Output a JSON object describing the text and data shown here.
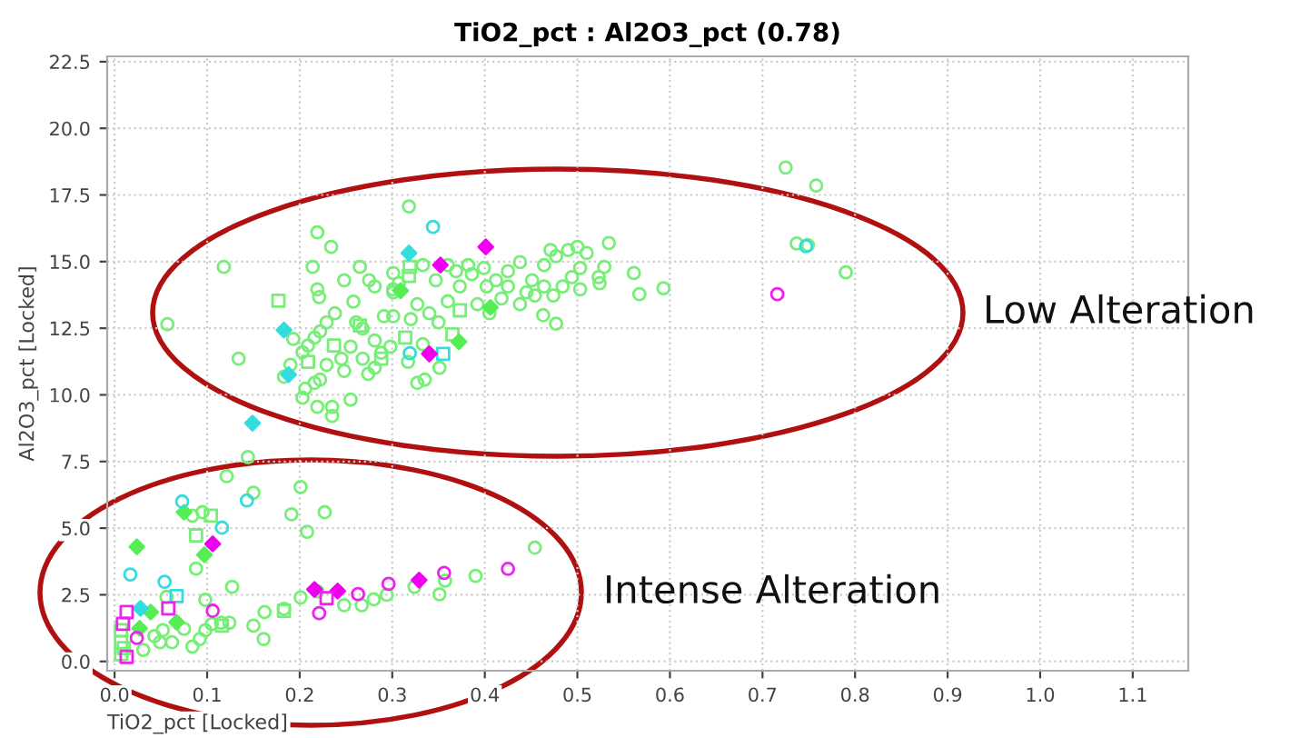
{
  "chart_data": {
    "type": "scatter",
    "title": "TiO2_pct : Al2O3_pct (0.78)",
    "xlabel": "TiO2_pct [Locked]",
    "ylabel": "Al2O3_pct [Locked]",
    "xlim": [
      -0.008,
      1.16
    ],
    "ylim": [
      -0.35,
      22.7
    ],
    "xticks": [
      {
        "value": 0,
        "label": "0.0"
      },
      0.1,
      0.2,
      0.3,
      0.4,
      0.5,
      0.6,
      0.7,
      0.8,
      0.9,
      {
        "value": 1,
        "label": "1.0"
      },
      1.1
    ],
    "yticks": [
      {
        "value": 0,
        "label": "0.0"
      },
      2.5,
      {
        "value": 5,
        "label": "5.0"
      },
      7.5,
      {
        "value": 10,
        "label": "10.0"
      },
      12.5,
      {
        "value": 15,
        "label": "15.0"
      },
      17.5,
      {
        "value": 20,
        "label": "20.0"
      },
      22.5
    ],
    "grid": true,
    "legend": false,
    "annotations": [
      "Low Alteration",
      "Intense Alteration"
    ],
    "series": [
      {
        "color": "#77ee77",
        "marker": "circle",
        "x": [
          0.118,
          0.057,
          0.134,
          0.219,
          0.234,
          0.318,
          0.214,
          0.219,
          0.221,
          0.193,
          0.203,
          0.209,
          0.216,
          0.222,
          0.229,
          0.238,
          0.248,
          0.258,
          0.265,
          0.275,
          0.281,
          0.261,
          0.268,
          0.255,
          0.245,
          0.229,
          0.222,
          0.206,
          0.203,
          0.219,
          0.235,
          0.235,
          0.255,
          0.248,
          0.268,
          0.281,
          0.291,
          0.301,
          0.307,
          0.333,
          0.347,
          0.327,
          0.301,
          0.288,
          0.281,
          0.274,
          0.298,
          0.317,
          0.327,
          0.335,
          0.333,
          0.351,
          0.35,
          0.34,
          0.32,
          0.36,
          0.373,
          0.386,
          0.399,
          0.412,
          0.418,
          0.405,
          0.392,
          0.425,
          0.438,
          0.451,
          0.445,
          0.463,
          0.477,
          0.464,
          0.477,
          0.49,
          0.5,
          0.51,
          0.503,
          0.494,
          0.484,
          0.474,
          0.464,
          0.454,
          0.438,
          0.425,
          0.503,
          0.523,
          0.524,
          0.529,
          0.534,
          0.561,
          0.567,
          0.593,
          0.471,
          0.369,
          0.382,
          0.402,
          0.36,
          0.301,
          0.301,
          0.216,
          0.19,
          0.183,
          0.749,
          0.725,
          0.758,
          0.737,
          0.79,
          0.144,
          0.121,
          0.15,
          0.201,
          0.191,
          0.208,
          0.227,
          0.095,
          0.084,
          0.088,
          0.098,
          0.127,
          0.075,
          0.052,
          0.043,
          0.031,
          0.049,
          0.062,
          0.084,
          0.092,
          0.098,
          0.105,
          0.115,
          0.124,
          0.15,
          0.161,
          0.162,
          0.183,
          0.201,
          0.219,
          0.248,
          0.267,
          0.28,
          0.294,
          0.324,
          0.351,
          0.357,
          0.39,
          0.454,
          0.056
        ],
        "values": [
          14.8,
          12.65,
          11.36,
          16.1,
          15.55,
          17.07,
          14.8,
          13.96,
          13.67,
          12.1,
          11.6,
          11.85,
          12.15,
          12.38,
          12.72,
          13.06,
          14.3,
          13.5,
          14.8,
          14.3,
          14.07,
          12.72,
          12.49,
          11.81,
          11.36,
          11.13,
          10.57,
          10.23,
          9.89,
          9.55,
          9.55,
          9.21,
          9.82,
          10.9,
          11.36,
          12.04,
          12.95,
          13.85,
          14.19,
          14.87,
          14.3,
          13.4,
          12.95,
          11.58,
          11.02,
          10.79,
          11.81,
          11.24,
          10.45,
          10.57,
          11.9,
          11.02,
          12.72,
          13.06,
          12.84,
          13.51,
          14.07,
          14.53,
          14.76,
          14.3,
          13.62,
          13.06,
          13.4,
          14.64,
          14.98,
          14.3,
          13.85,
          12.99,
          12.67,
          14.87,
          15.2,
          15.43,
          15.55,
          15.32,
          14.76,
          14.42,
          14.07,
          13.73,
          14.07,
          13.73,
          13.4,
          14.07,
          13.96,
          14.42,
          14.19,
          14.8,
          15.7,
          14.57,
          13.78,
          14.0,
          15.43,
          14.64,
          14.87,
          14.07,
          14.87,
          14.57,
          13.96,
          10.45,
          11.13,
          10.68,
          15.62,
          18.53,
          17.85,
          15.68,
          14.6,
          7.67,
          6.95,
          6.33,
          6.54,
          5.52,
          4.86,
          5.6,
          5.6,
          5.47,
          3.48,
          2.31,
          2.8,
          1.22,
          1.17,
          0.95,
          0.43,
          0.72,
          0.72,
          0.56,
          0.84,
          1.17,
          1.4,
          1.45,
          1.45,
          1.34,
          0.84,
          1.85,
          1.97,
          2.4,
          2.63,
          2.11,
          2.11,
          2.33,
          2.5,
          2.8,
          2.52,
          3.03,
          3.21,
          4.27,
          2.42
        ]
      },
      {
        "color": "#77ee77",
        "marker": "square",
        "x": [
          0.177,
          0.319,
          0.318,
          0.314,
          0.365,
          0.373,
          0.288,
          0.209,
          0.237,
          0.265,
          0.104,
          0.183,
          0.088,
          0.116,
          0.007,
          0.007,
          0.007,
          0.01
        ],
        "values": [
          13.53,
          14.8,
          14.46,
          12.15,
          12.27,
          13.17,
          11.36,
          11.24,
          11.85,
          12.6,
          5.47,
          1.9,
          4.73,
          1.34,
          0.72,
          0.27,
          1.17,
          0.5
        ]
      },
      {
        "color": "#55ee55",
        "marker": "diamond",
        "x": [
          0.309,
          0.372,
          0.406,
          0.024,
          0.075,
          0.097,
          0.027,
          0.039,
          0.067
        ],
        "values": [
          13.91,
          11.99,
          13.28,
          4.3,
          5.6,
          4.0,
          1.24,
          1.85,
          1.47
        ]
      },
      {
        "color": "#33dddd",
        "marker": "circle",
        "x": [
          0.344,
          0.319,
          0.747,
          0.073,
          0.116,
          0.143,
          0.017,
          0.054
        ],
        "values": [
          16.3,
          11.56,
          15.58,
          6.0,
          5.02,
          6.04,
          3.26,
          2.99
        ]
      },
      {
        "color": "#33dddd",
        "marker": "square",
        "x": [
          0.355,
          0.067
        ],
        "values": [
          11.54,
          2.45
        ]
      },
      {
        "color": "#33dddd",
        "marker": "diamond",
        "x": [
          0.318,
          0.183,
          0.188,
          0.149,
          0.028
        ],
        "values": [
          15.32,
          12.43,
          10.76,
          8.94,
          1.99
        ]
      },
      {
        "color": "#ee22ee",
        "marker": "circle",
        "x": [
          0.716,
          0.106,
          0.221,
          0.263,
          0.296,
          0.356,
          0.425,
          0.024
        ],
        "values": [
          13.78,
          1.9,
          1.81,
          2.53,
          2.91,
          3.32,
          3.47,
          0.88
        ]
      },
      {
        "color": "#ee00ee",
        "marker": "diamond",
        "x": [
          0.401,
          0.352,
          0.34,
          0.106,
          0.216,
          0.241,
          0.329
        ],
        "values": [
          15.55,
          14.87,
          11.54,
          4.41,
          2.7,
          2.64,
          3.05
        ]
      },
      {
        "color": "#ee22ee",
        "marker": "square",
        "x": [
          0.229,
          0.013,
          0.058,
          0.009,
          0.013
        ],
        "values": [
          2.37,
          1.85,
          1.99,
          1.41,
          0.17
        ]
      }
    ]
  }
}
